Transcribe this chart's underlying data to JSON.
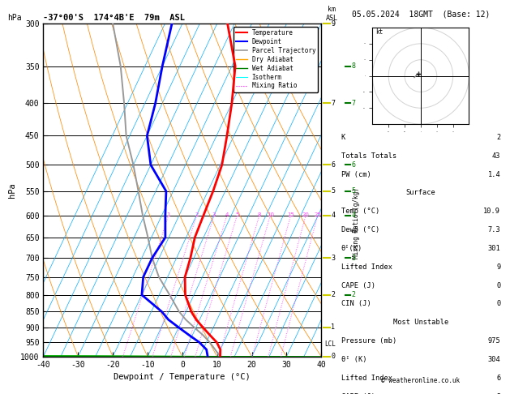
{
  "title_left": "-37°00'S  174°4B'E  79m  ASL",
  "title_right": "05.05.2024  18GMT  (Base: 12)",
  "xlabel": "Dewpoint / Temperature (°C)",
  "ylabel_left": "hPa",
  "pressure_major": [
    300,
    350,
    400,
    450,
    500,
    550,
    600,
    650,
    700,
    750,
    800,
    850,
    900,
    950,
    1000
  ],
  "temperature_data": {
    "pressure": [
      1000,
      975,
      950,
      925,
      900,
      875,
      850,
      800,
      750,
      700,
      650,
      600,
      550,
      500,
      450,
      400,
      350,
      300
    ],
    "temp": [
      10.9,
      10.0,
      8.0,
      5.0,
      2.0,
      -1.0,
      -3.5,
      -7.5,
      -10.0,
      -11.0,
      -12.5,
      -13.0,
      -13.5,
      -14.5,
      -17.0,
      -20.0,
      -24.0,
      -32.0
    ]
  },
  "dewpoint_data": {
    "pressure": [
      1000,
      975,
      950,
      925,
      900,
      875,
      850,
      800,
      750,
      700,
      650,
      600,
      550,
      500,
      450,
      400,
      350,
      300
    ],
    "dewp": [
      7.3,
      6.0,
      3.0,
      -1.0,
      -5.0,
      -9.0,
      -12.0,
      -20.0,
      -22.0,
      -22.0,
      -21.0,
      -24.0,
      -27.0,
      -35.0,
      -40.0,
      -42.0,
      -45.0,
      -48.0
    ]
  },
  "parcel_data": {
    "pressure": [
      1000,
      975,
      950,
      925,
      900,
      875,
      850,
      800,
      750,
      700,
      650,
      600,
      550,
      500,
      450,
      400,
      350,
      300
    ],
    "temp": [
      10.9,
      8.5,
      6.0,
      3.0,
      -0.5,
      -4.0,
      -7.0,
      -12.0,
      -17.5,
      -22.0,
      -26.0,
      -30.5,
      -35.0,
      -40.0,
      -46.0,
      -51.0,
      -57.0,
      -65.0
    ]
  },
  "mixing_ratio_lines": [
    1,
    2,
    3,
    4,
    5,
    8,
    10,
    15,
    20,
    25
  ],
  "km_tick_pressures": [
    300,
    400,
    500,
    550,
    600,
    700,
    800,
    900,
    1000
  ],
  "km_tick_values": [
    9,
    7,
    6,
    5,
    4,
    3,
    2,
    1,
    0
  ],
  "mr_tick_pressures": [
    350,
    400,
    500,
    550,
    600,
    700,
    800
  ],
  "mr_tick_values": [
    8,
    7,
    6,
    5,
    4,
    3,
    2
  ],
  "lcl_pressure": 955,
  "colors": {
    "temperature": "#ff0000",
    "dewpoint": "#0000ff",
    "parcel": "#999999",
    "dry_adiabat": "#ff8800",
    "wet_adiabat": "#00aa00",
    "isotherm": "#00aaff",
    "mixing_ratio": "#ff44ff",
    "background": "#ffffff",
    "grid": "#000000",
    "yellow": "#cccc00"
  },
  "copyright": "© weatheronline.co.uk",
  "hodo_trace_u": [
    -4,
    -3,
    -2.5,
    -2,
    -1.5
  ],
  "hodo_trace_v": [
    -1,
    0,
    0.5,
    1,
    1.5
  ],
  "hodo_storm_u": [
    -1.5,
    -1.0
  ],
  "hodo_storm_v": [
    1.5,
    2.0
  ]
}
